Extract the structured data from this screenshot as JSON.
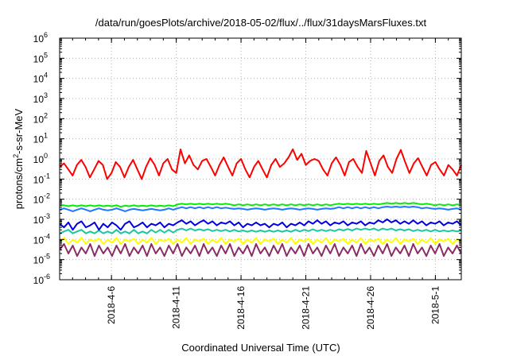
{
  "chart_data": {
    "type": "line",
    "title": "/data/run/goesPlots/archive/2018-05-02/flux/../flux/31daysMarsFluxes.txt",
    "xlabel": "Coordinated Universal Time (UTC)",
    "ylabel": {
      "base": "protons/cm",
      "sup": "2",
      "rest": "-s-sr-MeV"
    },
    "x_range": [
      "2018-04-02",
      "2018-05-03"
    ],
    "x_ticks": [
      "2018-4-6",
      "2018-4-11",
      "2018-4-16",
      "2018-4-21",
      "2018-4-26",
      "2018-5-1"
    ],
    "x_tick_days": [
      4,
      9,
      14,
      19,
      24,
      29
    ],
    "y_scale": "log",
    "ylim": [
      1e-06,
      1000000.0
    ],
    "y_ticks": [
      {
        "base": "10",
        "exp": "-6"
      },
      {
        "base": "10",
        "exp": "-5"
      },
      {
        "base": "10",
        "exp": "-4"
      },
      {
        "base": "10",
        "exp": "-3"
      },
      {
        "base": "10",
        "exp": "-2"
      },
      {
        "base": "10",
        "exp": "-1"
      },
      {
        "base": "10",
        "exp": "0"
      },
      {
        "base": "10",
        "exp": "1"
      },
      {
        "base": "10",
        "exp": "2"
      },
      {
        "base": "10",
        "exp": "3"
      },
      {
        "base": "10",
        "exp": "4"
      },
      {
        "base": "10",
        "exp": "5"
      },
      {
        "base": "10",
        "exp": "6"
      }
    ],
    "grid": true,
    "series": [
      {
        "color": "#ff0000",
        "values": [
          0.4,
          0.6,
          0.3,
          0.15,
          0.5,
          0.9,
          0.4,
          0.12,
          0.3,
          0.8,
          0.5,
          0.1,
          0.2,
          0.7,
          0.4,
          0.12,
          0.4,
          0.9,
          0.3,
          0.1,
          0.4,
          1.1,
          0.5,
          0.15,
          0.6,
          1.0,
          0.3,
          0.2,
          3.0,
          0.6,
          1.5,
          0.5,
          0.3,
          0.8,
          1.0,
          0.4,
          0.15,
          0.5,
          1.2,
          0.4,
          0.15,
          0.6,
          1.0,
          0.3,
          0.12,
          0.4,
          0.8,
          0.3,
          0.12,
          0.5,
          1.0,
          0.4,
          0.6,
          1.2,
          3.0,
          0.9,
          1.8,
          0.5,
          0.8,
          1.0,
          0.8,
          0.3,
          0.15,
          0.6,
          1.2,
          0.5,
          0.15,
          0.7,
          1.0,
          0.4,
          0.2,
          2.5,
          0.6,
          0.15,
          0.8,
          1.5,
          0.4,
          0.2,
          1.0,
          2.8,
          0.7,
          0.2,
          0.6,
          1.1,
          0.4,
          0.15,
          0.5,
          0.7,
          0.3,
          0.15,
          0.5,
          0.3,
          0.15,
          0.5
        ]
      },
      {
        "color": "#00ee00",
        "values": [
          0.005,
          0.005,
          0.0045,
          0.005,
          0.0045,
          0.005,
          0.0045,
          0.005,
          0.0045,
          0.005,
          0.0045,
          0.0048,
          0.0045,
          0.005,
          0.0042,
          0.0048,
          0.0045,
          0.005,
          0.0045,
          0.0048,
          0.0045,
          0.005,
          0.0045,
          0.0048,
          0.0045,
          0.005,
          0.0045,
          0.0055,
          0.006,
          0.0055,
          0.006,
          0.0055,
          0.006,
          0.0055,
          0.006,
          0.0055,
          0.006,
          0.0055,
          0.006,
          0.0055,
          0.005,
          0.0055,
          0.005,
          0.0055,
          0.005,
          0.0055,
          0.005,
          0.0055,
          0.005,
          0.0055,
          0.005,
          0.0055,
          0.005,
          0.0055,
          0.005,
          0.0055,
          0.005,
          0.0055,
          0.005,
          0.0055,
          0.005,
          0.0055,
          0.005,
          0.0055,
          0.006,
          0.0055,
          0.006,
          0.0055,
          0.006,
          0.0055,
          0.006,
          0.0055,
          0.006,
          0.0055,
          0.006,
          0.0065,
          0.006,
          0.0065,
          0.006,
          0.0065,
          0.006,
          0.0065,
          0.006,
          0.0055,
          0.006,
          0.0055,
          0.005,
          0.0055,
          0.005,
          0.0055,
          0.005,
          0.0055,
          0.005
        ]
      },
      {
        "color": "#1e78ff",
        "values": [
          0.003,
          0.0035,
          0.003,
          0.0025,
          0.003,
          0.0035,
          0.003,
          0.0025,
          0.003,
          0.0035,
          0.003,
          0.0028,
          0.003,
          0.0035,
          0.003,
          0.0025,
          0.003,
          0.0033,
          0.003,
          0.0028,
          0.003,
          0.0033,
          0.003,
          0.0028,
          0.003,
          0.0035,
          0.003,
          0.0035,
          0.004,
          0.0035,
          0.004,
          0.0035,
          0.004,
          0.0035,
          0.004,
          0.0035,
          0.004,
          0.0035,
          0.0038,
          0.0035,
          0.0033,
          0.0035,
          0.0033,
          0.003,
          0.0033,
          0.0035,
          0.0033,
          0.003,
          0.0033,
          0.0035,
          0.0033,
          0.003,
          0.0033,
          0.0035,
          0.0033,
          0.003,
          0.0033,
          0.0035,
          0.0033,
          0.003,
          0.0033,
          0.0035,
          0.0033,
          0.0035,
          0.004,
          0.0035,
          0.004,
          0.0035,
          0.004,
          0.0035,
          0.004,
          0.0035,
          0.004,
          0.0035,
          0.004,
          0.0043,
          0.004,
          0.0043,
          0.004,
          0.0043,
          0.004,
          0.0043,
          0.004,
          0.0035,
          0.0038,
          0.0035,
          0.0033,
          0.0035,
          0.0033,
          0.003,
          0.0033,
          0.0035,
          0.003
        ]
      },
      {
        "color": "#0000dd",
        "values": [
          0.0006,
          0.0004,
          0.0007,
          0.0003,
          0.0006,
          0.0008,
          0.0004,
          0.0005,
          0.0007,
          0.0003,
          0.0006,
          0.0004,
          0.0007,
          0.0005,
          0.0003,
          0.0006,
          0.0008,
          0.0004,
          0.0005,
          0.0007,
          0.0004,
          0.0006,
          0.0005,
          0.0007,
          0.0004,
          0.0006,
          0.0005,
          0.0007,
          0.0009,
          0.0006,
          0.0008,
          0.0005,
          0.0007,
          0.0009,
          0.0006,
          0.0008,
          0.0005,
          0.0007,
          0.0006,
          0.0008,
          0.0005,
          0.0007,
          0.0004,
          0.0006,
          0.0005,
          0.0007,
          0.0005,
          0.0006,
          0.0004,
          0.0006,
          0.0005,
          0.0007,
          0.0004,
          0.0006,
          0.0005,
          0.0007,
          0.0005,
          0.0008,
          0.0006,
          0.0009,
          0.0006,
          0.0008,
          0.0005,
          0.0007,
          0.0006,
          0.0008,
          0.0005,
          0.0007,
          0.0006,
          0.0008,
          0.0005,
          0.0007,
          0.0006,
          0.0009,
          0.0007,
          0.001,
          0.0007,
          0.0009,
          0.0006,
          0.0008,
          0.0006,
          0.0009,
          0.0006,
          0.0008,
          0.0005,
          0.0007,
          0.0006,
          0.0008,
          0.0005,
          0.0007,
          0.0006,
          0.0008,
          0.0005
        ]
      },
      {
        "color": "#19c8a0",
        "values": [
          0.0002,
          0.00025,
          0.0003,
          0.0002,
          0.00025,
          0.0003,
          0.0002,
          0.00025,
          0.0002,
          0.00028,
          0.0002,
          0.00025,
          0.0002,
          0.0003,
          0.0002,
          0.00025,
          0.0002,
          0.0003,
          0.0002,
          0.00025,
          0.0002,
          0.0003,
          0.00022,
          0.0003,
          0.00022,
          0.0003,
          0.00022,
          0.0003,
          0.00035,
          0.00028,
          0.00035,
          0.00028,
          0.00032,
          0.00028,
          0.00032,
          0.00026,
          0.0003,
          0.00026,
          0.0003,
          0.00025,
          0.0003,
          0.00025,
          0.00028,
          0.00024,
          0.00028,
          0.00024,
          0.00028,
          0.00024,
          0.00028,
          0.00024,
          0.00028,
          0.00024,
          0.00028,
          0.00024,
          0.0003,
          0.00025,
          0.0003,
          0.00026,
          0.00032,
          0.00026,
          0.0003,
          0.00026,
          0.0003,
          0.00026,
          0.00032,
          0.00028,
          0.00033,
          0.00028,
          0.00035,
          0.0003,
          0.00035,
          0.0003,
          0.00035,
          0.00028,
          0.00035,
          0.0003,
          0.00035,
          0.00028,
          0.00032,
          0.00028,
          0.00032,
          0.00026,
          0.0003,
          0.00026,
          0.0003,
          0.00025,
          0.0003,
          0.00025,
          0.00028,
          0.00025,
          0.00028,
          0.00025,
          0.00028
        ]
      },
      {
        "color": "#ffff00",
        "values": [
          8e-05,
          0.00012,
          6e-05,
          0.0001,
          7e-05,
          0.00012,
          6e-05,
          0.0001,
          8e-05,
          0.00011,
          6e-05,
          0.0001,
          7e-05,
          0.00012,
          6e-05,
          0.0001,
          8e-05,
          0.00011,
          6e-05,
          0.0001,
          7e-05,
          0.00012,
          6e-05,
          0.0001,
          8e-05,
          0.00011,
          6e-05,
          0.0001,
          7e-05,
          0.00012,
          6e-05,
          0.0001,
          8e-05,
          0.00011,
          6e-05,
          0.0001,
          7e-05,
          0.00012,
          6e-05,
          0.0001,
          8e-05,
          0.00011,
          6e-05,
          0.0001,
          7e-05,
          0.00012,
          6e-05,
          0.0001,
          8e-05,
          0.00011,
          6e-05,
          0.0001,
          7e-05,
          0.00012,
          6e-05,
          0.0001,
          8e-05,
          0.00011,
          6e-05,
          0.0001,
          7e-05,
          0.00012,
          6e-05,
          0.0001,
          8e-05,
          0.00011,
          6e-05,
          0.0001,
          7e-05,
          0.00012,
          6e-05,
          0.0001,
          8e-05,
          0.00011,
          6e-05,
          0.0001,
          7e-05,
          0.00012,
          6e-05,
          0.0001,
          8e-05,
          0.00011,
          6e-05,
          0.0001,
          7e-05,
          0.00012,
          6e-05,
          0.0001,
          8e-05,
          0.00011,
          6e-05,
          0.0001,
          8e-05
        ]
      },
      {
        "color": "#8b2c64",
        "values": [
          3e-05,
          6e-05,
          2e-05,
          5e-05,
          1.5e-05,
          4e-05,
          2e-05,
          6e-05,
          1.5e-05,
          5e-05,
          2e-05,
          4e-05,
          1.5e-05,
          5e-05,
          2e-05,
          6e-05,
          1.5e-05,
          4e-05,
          2e-05,
          5e-05,
          1.5e-05,
          6e-05,
          2e-05,
          4e-05,
          1.5e-05,
          5e-05,
          2e-05,
          6e-05,
          1.5e-05,
          4e-05,
          2e-05,
          5e-05,
          1.5e-05,
          6e-05,
          2e-05,
          4e-05,
          1.5e-05,
          5e-05,
          2e-05,
          6e-05,
          1.5e-05,
          4e-05,
          2e-05,
          5e-05,
          1.5e-05,
          6e-05,
          2e-05,
          4e-05,
          1.5e-05,
          5e-05,
          2e-05,
          6e-05,
          1.5e-05,
          4e-05,
          2e-05,
          5e-05,
          1.5e-05,
          6e-05,
          2e-05,
          4e-05,
          1.5e-05,
          5e-05,
          2e-05,
          6e-05,
          1.5e-05,
          4e-05,
          2e-05,
          5e-05,
          1.5e-05,
          6e-05,
          2e-05,
          4e-05,
          1.5e-05,
          5e-05,
          2e-05,
          6e-05,
          1.5e-05,
          4e-05,
          2e-05,
          5e-05,
          1.5e-05,
          6e-05,
          2e-05,
          4e-05,
          1.5e-05,
          5e-05,
          2e-05,
          6e-05,
          1.5e-05,
          4e-05,
          2e-05,
          5e-05,
          2e-05
        ]
      }
    ]
  }
}
